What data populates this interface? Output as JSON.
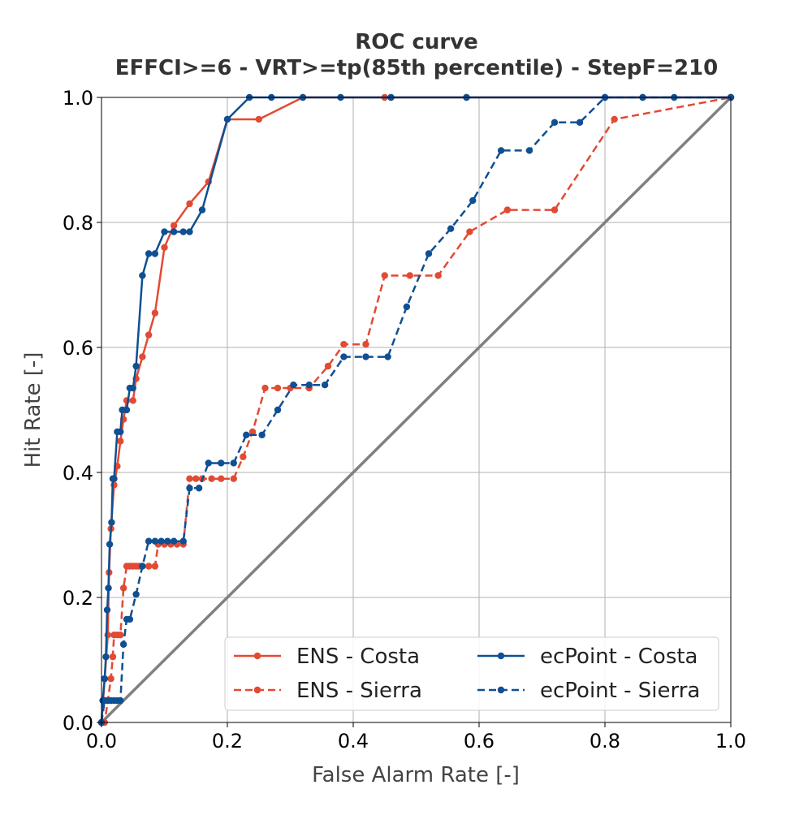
{
  "chart_data": {
    "type": "line",
    "title": "ROC curve",
    "subtitle": "EFFCI>=6 - VRT>=tp(85th percentile) - StepF=210",
    "xlabel": "False Alarm Rate [-]",
    "ylabel": "Hit Rate [-]",
    "xlim": [
      0,
      1
    ],
    "ylim": [
      0,
      1
    ],
    "xticks": [
      "0.0",
      "0.2",
      "0.4",
      "0.6",
      "0.8",
      "1.0"
    ],
    "yticks": [
      "0.0",
      "0.2",
      "0.4",
      "0.6",
      "0.8",
      "1.0"
    ],
    "grid": true,
    "legend_position": "lower-right",
    "diagonal": {
      "color": "#808080"
    },
    "series": [
      {
        "name": "ENS - Costa",
        "color": "#e24a33",
        "dash": false,
        "x": [
          0,
          0.005,
          0.01,
          0.012,
          0.015,
          0.02,
          0.025,
          0.03,
          0.035,
          0.04,
          0.05,
          0.055,
          0.065,
          0.075,
          0.085,
          0.1,
          0.115,
          0.14,
          0.17,
          0.2,
          0.25,
          0.32,
          0.45,
          0.46,
          0.58,
          1.0
        ],
        "y": [
          0,
          0.07,
          0.14,
          0.24,
          0.31,
          0.38,
          0.41,
          0.45,
          0.485,
          0.515,
          0.515,
          0.55,
          0.585,
          0.62,
          0.655,
          0.76,
          0.795,
          0.83,
          0.865,
          0.965,
          0.965,
          1.0,
          1.0,
          1.0,
          1.0,
          1.0
        ]
      },
      {
        "name": "ENS - Sierra",
        "color": "#e24a33",
        "dash": true,
        "x": [
          0,
          0.005,
          0.01,
          0.015,
          0.018,
          0.02,
          0.025,
          0.03,
          0.035,
          0.04,
          0.045,
          0.05,
          0.055,
          0.06,
          0.065,
          0.075,
          0.085,
          0.09,
          0.1,
          0.11,
          0.12,
          0.13,
          0.14,
          0.15,
          0.16,
          0.175,
          0.19,
          0.21,
          0.225,
          0.24,
          0.26,
          0.28,
          0.3,
          0.33,
          0.36,
          0.385,
          0.42,
          0.45,
          0.49,
          0.535,
          0.585,
          0.645,
          0.72,
          0.815,
          1.0
        ],
        "y": [
          0,
          0.0,
          0.035,
          0.07,
          0.105,
          0.14,
          0.14,
          0.14,
          0.215,
          0.25,
          0.25,
          0.25,
          0.25,
          0.25,
          0.25,
          0.25,
          0.25,
          0.285,
          0.285,
          0.285,
          0.285,
          0.285,
          0.39,
          0.39,
          0.39,
          0.39,
          0.39,
          0.39,
          0.425,
          0.465,
          0.535,
          0.535,
          0.535,
          0.535,
          0.57,
          0.605,
          0.605,
          0.715,
          0.715,
          0.715,
          0.785,
          0.82,
          0.82,
          0.965,
          1.0
        ]
      },
      {
        "name": "ecPoint - Costa",
        "color": "#0f4f93",
        "dash": false,
        "x": [
          0,
          0.002,
          0.005,
          0.007,
          0.009,
          0.011,
          0.013,
          0.016,
          0.018,
          0.02,
          0.025,
          0.03,
          0.033,
          0.04,
          0.045,
          0.05,
          0.055,
          0.065,
          0.075,
          0.085,
          0.1,
          0.115,
          0.13,
          0.14,
          0.16,
          0.2,
          0.235,
          0.27,
          0.32,
          0.38,
          0.46,
          0.58,
          0.8,
          0.86,
          1.0
        ],
        "y": [
          0,
          0.035,
          0.07,
          0.105,
          0.18,
          0.215,
          0.285,
          0.32,
          0.39,
          0.39,
          0.465,
          0.465,
          0.5,
          0.5,
          0.535,
          0.535,
          0.57,
          0.715,
          0.75,
          0.75,
          0.785,
          0.785,
          0.785,
          0.785,
          0.82,
          0.965,
          1.0,
          1.0,
          1.0,
          1.0,
          1.0,
          1.0,
          1.0,
          1.0,
          1.0
        ]
      },
      {
        "name": "ecPoint - Sierra",
        "color": "#0f4f93",
        "dash": true,
        "x": [
          0,
          0.005,
          0.01,
          0.015,
          0.02,
          0.025,
          0.03,
          0.035,
          0.04,
          0.045,
          0.055,
          0.065,
          0.075,
          0.085,
          0.095,
          0.105,
          0.115,
          0.13,
          0.14,
          0.155,
          0.17,
          0.19,
          0.21,
          0.23,
          0.255,
          0.28,
          0.305,
          0.33,
          0.355,
          0.385,
          0.42,
          0.455,
          0.485,
          0.52,
          0.555,
          0.59,
          0.635,
          0.68,
          0.72,
          0.76,
          0.8,
          0.86,
          0.91,
          1.0
        ],
        "y": [
          0,
          0.035,
          0.035,
          0.035,
          0.035,
          0.035,
          0.035,
          0.125,
          0.165,
          0.165,
          0.205,
          0.25,
          0.29,
          0.29,
          0.29,
          0.29,
          0.29,
          0.29,
          0.375,
          0.375,
          0.415,
          0.415,
          0.415,
          0.46,
          0.46,
          0.5,
          0.54,
          0.54,
          0.54,
          0.585,
          0.585,
          0.585,
          0.665,
          0.75,
          0.79,
          0.835,
          0.915,
          0.915,
          0.96,
          0.96,
          1.0,
          1.0,
          1.0,
          1.0
        ]
      }
    ]
  }
}
